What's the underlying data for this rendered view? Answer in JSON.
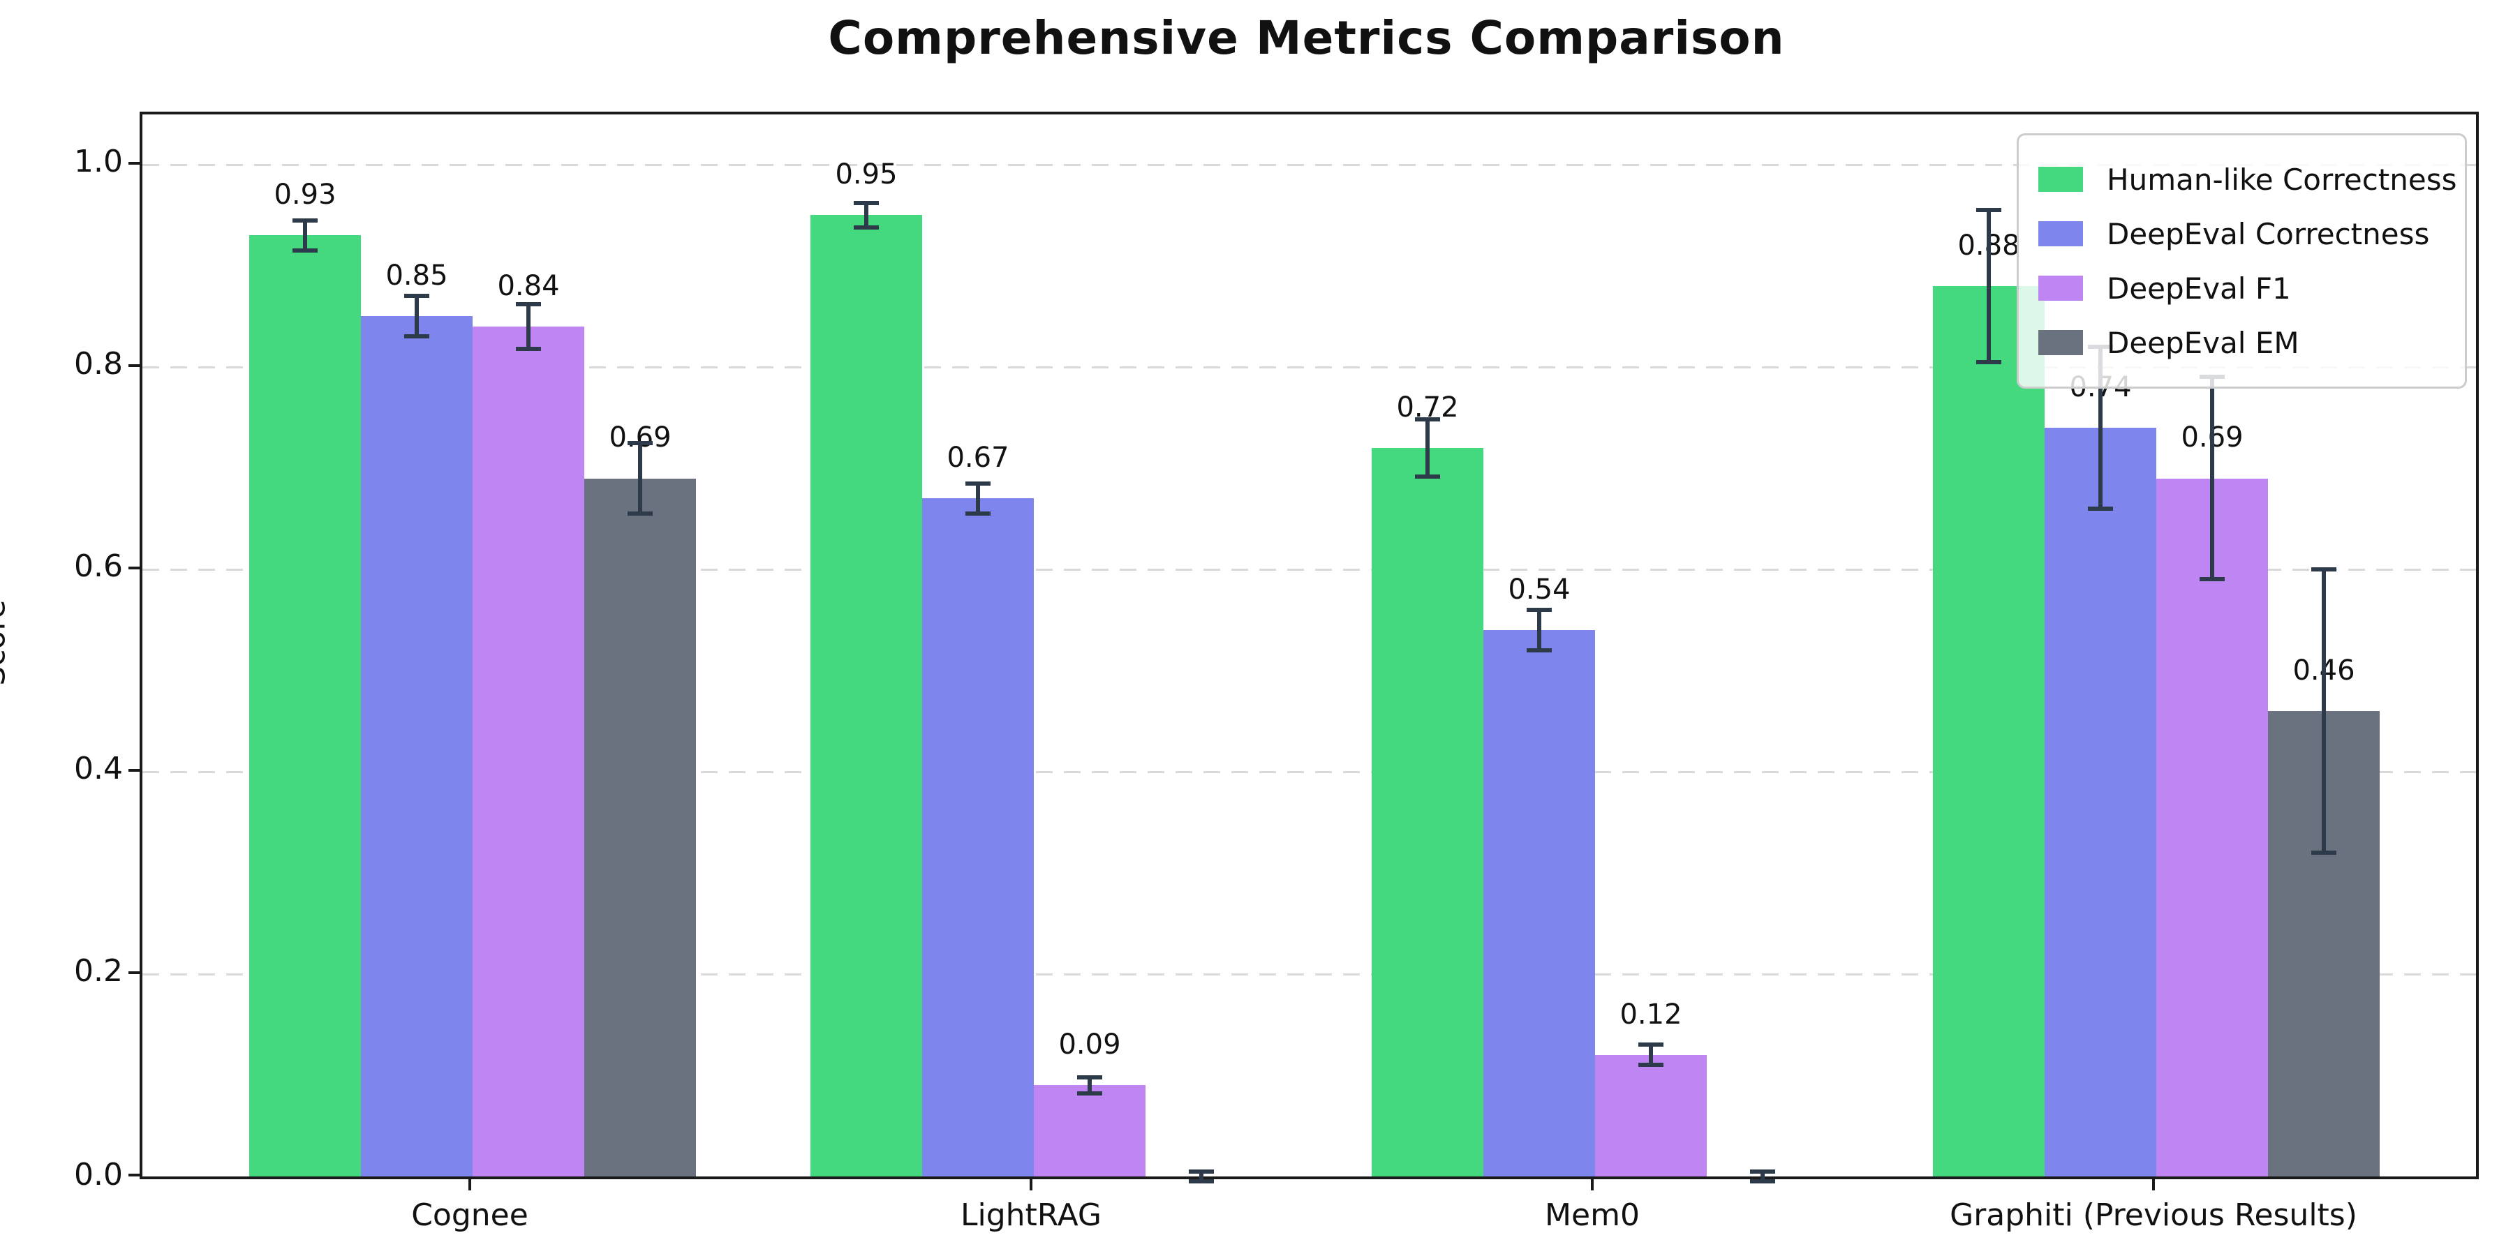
{
  "chart_data": {
    "type": "bar",
    "title": "Comprehensive Metrics Comparison",
    "xlabel": "",
    "ylabel": "Score",
    "categories": [
      "Cognee",
      "LightRAG",
      "Mem0",
      "Graphiti (Previous Results)"
    ],
    "series": [
      {
        "name": "Human-like Correctness",
        "color": "#45d97f",
        "values": [
          0.93,
          0.95,
          0.72,
          0.88
        ],
        "errors": [
          0.015,
          0.012,
          0.028,
          0.075
        ],
        "bar_labels": [
          "0.93",
          "0.95",
          "0.72",
          "0.88"
        ]
      },
      {
        "name": "DeepEval Correctness",
        "color": "#7e86ee",
        "values": [
          0.85,
          0.67,
          0.54,
          0.74
        ],
        "errors": [
          0.02,
          0.015,
          0.02,
          0.08
        ],
        "bar_labels": [
          "0.85",
          "0.67",
          "0.54",
          "0.74"
        ]
      },
      {
        "name": "DeepEval F1",
        "color": "#bf85f2",
        "values": [
          0.84,
          0.09,
          0.12,
          0.69
        ],
        "errors": [
          0.022,
          0.008,
          0.01,
          0.1
        ],
        "bar_labels": [
          "0.84",
          "0.09",
          "0.12",
          "0.69"
        ]
      },
      {
        "name": "DeepEval EM",
        "color": "#6a7280",
        "values": [
          0.69,
          0.0,
          0.0,
          0.46
        ],
        "errors": [
          0.035,
          0.005,
          0.005,
          0.14
        ],
        "bar_labels": [
          "0.69",
          "",
          "",
          "0.46"
        ]
      }
    ],
    "yticks": [
      "0.0",
      "0.2",
      "0.4",
      "0.6",
      "0.8",
      "1.0"
    ],
    "ylim": [
      0.0,
      1.05
    ],
    "grid": "horizontal dashed lines at 0.2 intervals",
    "legend_position": "upper right",
    "error_bar_color": "#2d3a4a",
    "gridline_color": "#d9d9d9",
    "axis_color": "#1a1a1a"
  }
}
